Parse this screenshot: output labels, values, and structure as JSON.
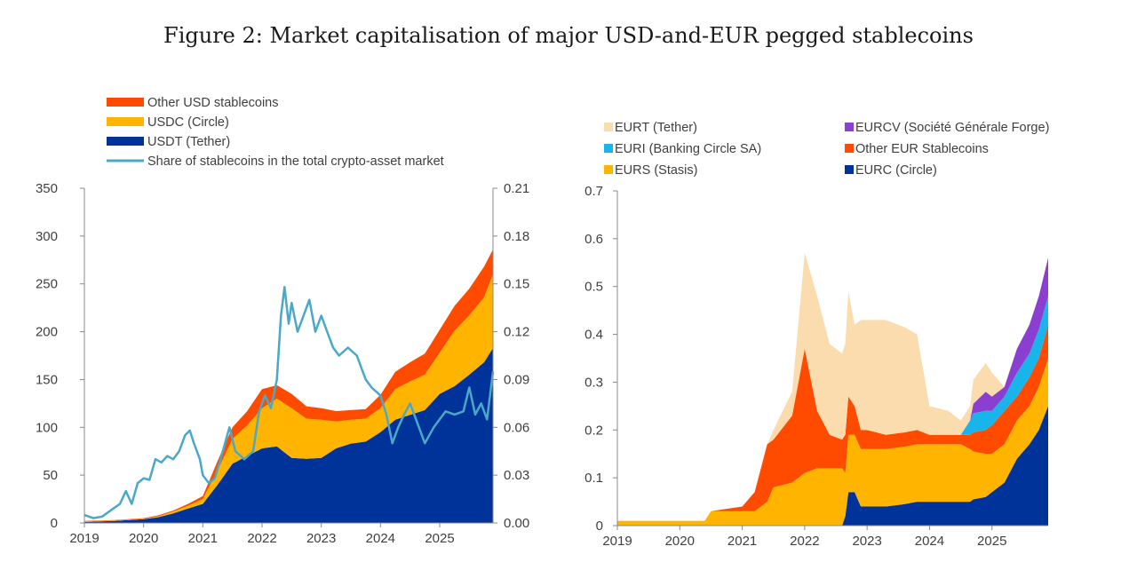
{
  "figure": {
    "title": "Figure 2: Market capitalisation of major USD-and-EUR pegged stablecoins"
  },
  "chart_data": [
    {
      "type": "area",
      "stacked": true,
      "title": "",
      "xlabel": "",
      "ylabel": "",
      "x_ticks": [
        "2019",
        "2020",
        "2021",
        "2022",
        "2023",
        "2024",
        "2025"
      ],
      "xlim": [
        2019,
        2025.9
      ],
      "ylim": [
        0,
        350
      ],
      "y_ticks": [
        "0",
        "50",
        "100",
        "150",
        "200",
        "250",
        "300",
        "350"
      ],
      "y2lim": [
        0,
        0.21
      ],
      "y2_ticks": [
        "0.00",
        "0.03",
        "0.06",
        "0.09",
        "0.12",
        "0.15",
        "0.18",
        "0.21"
      ],
      "legend_position": "top",
      "grid": false,
      "x": [
        2019.0,
        2019.5,
        2020.0,
        2020.25,
        2020.5,
        2020.75,
        2021.0,
        2021.25,
        2021.5,
        2021.75,
        2022.0,
        2022.25,
        2022.5,
        2022.75,
        2023.0,
        2023.25,
        2023.5,
        2023.75,
        2024.0,
        2024.25,
        2024.5,
        2024.75,
        2025.0,
        2025.25,
        2025.5,
        2025.75,
        2025.9
      ],
      "series": [
        {
          "name": "USDT (Tether)",
          "color": "#003399",
          "values": [
            1,
            2,
            4,
            6,
            10,
            15,
            20,
            40,
            62,
            70,
            78,
            80,
            68,
            67,
            68,
            78,
            83,
            85,
            95,
            108,
            113,
            118,
            135,
            143,
            155,
            168,
            183
          ]
        },
        {
          "name": "USDC (Circle)",
          "color": "#ffb400",
          "values": [
            0.5,
            0.5,
            0.5,
            1,
            2,
            3,
            5,
            15,
            26,
            32,
            42,
            50,
            52,
            42,
            40,
            28,
            25,
            24,
            25,
            32,
            35,
            37,
            43,
            58,
            62,
            68,
            77
          ]
        },
        {
          "name": "Other USD stablecoins",
          "color": "#ff4b00",
          "values": [
            0.5,
            0.5,
            0.5,
            1,
            1,
            2,
            3,
            10,
            12,
            15,
            20,
            14,
            15,
            13,
            12,
            11,
            10,
            10,
            14,
            18,
            20,
            22,
            24,
            26,
            28,
            32,
            26
          ]
        }
      ],
      "line_series": {
        "name": "Share of stablecoins in the total crypto-asset market",
        "color": "#4aa8c8",
        "axis": "secondary",
        "x": [
          2019.0,
          2019.15,
          2019.3,
          2019.45,
          2019.6,
          2019.7,
          2019.8,
          2019.9,
          2020.0,
          2020.1,
          2020.2,
          2020.3,
          2020.4,
          2020.5,
          2020.6,
          2020.7,
          2020.78,
          2020.85,
          2020.95,
          2021.0,
          2021.1,
          2021.2,
          2021.3,
          2021.45,
          2021.55,
          2021.7,
          2021.85,
          2021.95,
          2022.05,
          2022.15,
          2022.25,
          2022.32,
          2022.38,
          2022.45,
          2022.5,
          2022.6,
          2022.7,
          2022.8,
          2022.9,
          2023.0,
          2023.1,
          2023.2,
          2023.3,
          2023.45,
          2023.6,
          2023.75,
          2023.85,
          2024.0,
          2024.1,
          2024.2,
          2024.3,
          2024.4,
          2024.5,
          2024.6,
          2024.75,
          2024.9,
          2025.0,
          2025.1,
          2025.25,
          2025.4,
          2025.5,
          2025.6,
          2025.7,
          2025.8,
          2025.9
        ],
        "values": [
          0.005,
          0.003,
          0.004,
          0.008,
          0.012,
          0.02,
          0.012,
          0.025,
          0.028,
          0.027,
          0.04,
          0.038,
          0.042,
          0.04,
          0.045,
          0.055,
          0.058,
          0.05,
          0.04,
          0.03,
          0.025,
          0.028,
          0.04,
          0.06,
          0.045,
          0.04,
          0.045,
          0.07,
          0.08,
          0.072,
          0.09,
          0.13,
          0.148,
          0.125,
          0.138,
          0.12,
          0.13,
          0.14,
          0.12,
          0.13,
          0.12,
          0.11,
          0.105,
          0.11,
          0.105,
          0.09,
          0.085,
          0.08,
          0.068,
          0.05,
          0.06,
          0.068,
          0.075,
          0.065,
          0.05,
          0.06,
          0.065,
          0.07,
          0.068,
          0.07,
          0.085,
          0.068,
          0.075,
          0.065,
          0.095
        ]
      }
    },
    {
      "type": "area",
      "stacked": true,
      "title": "",
      "xlabel": "",
      "ylabel": "",
      "x_ticks": [
        "2019",
        "2020",
        "2021",
        "2022",
        "2023",
        "2024",
        "2025"
      ],
      "xlim": [
        2019,
        2025.9
      ],
      "ylim": [
        0,
        0.7
      ],
      "y_ticks": [
        "0",
        "0.1",
        "0.2",
        "0.3",
        "0.4",
        "0.5",
        "0.6",
        "0.7"
      ],
      "legend_position": "top",
      "grid": false,
      "x": [
        2019.0,
        2019.5,
        2020.0,
        2020.4,
        2020.5,
        2021.0,
        2021.2,
        2021.4,
        2021.5,
        2021.8,
        2022.0,
        2022.2,
        2022.4,
        2022.6,
        2022.65,
        2022.7,
        2022.8,
        2022.9,
        2023.0,
        2023.3,
        2023.6,
        2023.8,
        2024.0,
        2024.3,
        2024.5,
        2024.65,
        2024.7,
        2024.9,
        2025.0,
        2025.2,
        2025.4,
        2025.6,
        2025.75,
        2025.9
      ],
      "series": [
        {
          "name": "EURC (Circle)",
          "color": "#003399",
          "values": [
            0,
            0,
            0,
            0,
            0,
            0,
            0,
            0,
            0,
            0,
            0,
            0,
            0,
            0,
            0.02,
            0.07,
            0.07,
            0.04,
            0.04,
            0.04,
            0.045,
            0.05,
            0.05,
            0.05,
            0.05,
            0.05,
            0.055,
            0.06,
            0.07,
            0.09,
            0.14,
            0.17,
            0.2,
            0.25
          ]
        },
        {
          "name": "EURS (Stasis)",
          "color": "#ffb400",
          "values": [
            0.01,
            0.01,
            0.01,
            0.01,
            0.03,
            0.03,
            0.03,
            0.05,
            0.08,
            0.09,
            0.11,
            0.12,
            0.12,
            0.12,
            0.09,
            0.12,
            0.12,
            0.12,
            0.12,
            0.12,
            0.12,
            0.12,
            0.12,
            0.12,
            0.12,
            0.11,
            0.1,
            0.09,
            0.08,
            0.08,
            0.08,
            0.08,
            0.09,
            0.1
          ]
        },
        {
          "name": "Other EUR Stablecoins",
          "color": "#ff4b00",
          "values": [
            0,
            0,
            0,
            0,
            0,
            0.01,
            0.04,
            0.12,
            0.1,
            0.14,
            0.26,
            0.12,
            0.07,
            0.06,
            0.08,
            0.08,
            0.06,
            0.04,
            0.04,
            0.03,
            0.03,
            0.03,
            0.02,
            0.02,
            0.02,
            0.03,
            0.04,
            0.05,
            0.06,
            0.07,
            0.05,
            0.06,
            0.06,
            0.07
          ]
        },
        {
          "name": "EURI (Banking Circle SA)",
          "color": "#19b5ea",
          "values": [
            0,
            0,
            0,
            0,
            0,
            0,
            0,
            0,
            0,
            0,
            0,
            0,
            0,
            0,
            0,
            0,
            0,
            0,
            0,
            0,
            0,
            0,
            0,
            0,
            0,
            0.03,
            0.04,
            0.04,
            0.03,
            0.03,
            0.05,
            0.05,
            0.06,
            0.06
          ]
        },
        {
          "name": "EURCV (Société Générale Forge)",
          "color": "#8a3fd1",
          "values": [
            0,
            0,
            0,
            0,
            0,
            0,
            0,
            0,
            0,
            0,
            0,
            0,
            0,
            0,
            0,
            0,
            0,
            0,
            0,
            0,
            0,
            0,
            0,
            0,
            0,
            0,
            0.02,
            0.04,
            0.03,
            0.02,
            0.05,
            0.06,
            0.07,
            0.08
          ]
        },
        {
          "name": "EURT (Tether)",
          "color": "#fbdcae",
          "values": [
            0,
            0,
            0,
            0,
            0,
            0,
            0,
            0,
            0.02,
            0.05,
            0.2,
            0.24,
            0.19,
            0.18,
            0.19,
            0.22,
            0.17,
            0.23,
            0.23,
            0.24,
            0.22,
            0.2,
            0.06,
            0.05,
            0.03,
            0.03,
            0.05,
            0.06,
            0.05,
            0,
            0,
            0,
            0,
            0
          ]
        }
      ]
    }
  ]
}
